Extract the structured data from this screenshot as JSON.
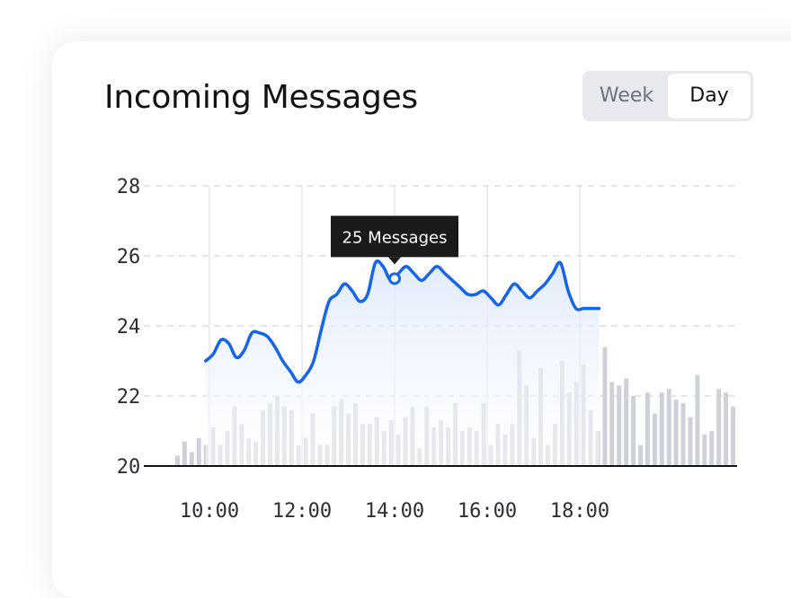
{
  "header": {
    "title": "Incoming Messages"
  },
  "toggle": {
    "options": [
      "Week",
      "Day"
    ],
    "selected": "Day"
  },
  "colors": {
    "line": "#1565e8",
    "fill": "#dbe7fb",
    "bars": "#cfd1da",
    "grid": "#c9ccd3",
    "tooltip_bg": "#1a1a1a"
  },
  "tooltip": {
    "text": "25 Messages",
    "x": "14:00",
    "y": 25.35
  },
  "chart_data": {
    "type": "line",
    "y_ticks": [
      20,
      22,
      24,
      26,
      28
    ],
    "x_ticks": [
      "10:00",
      "12:00",
      "14:00",
      "16:00",
      "18:00"
    ],
    "ylim": [
      20,
      28
    ],
    "x_range": [
      "09:55",
      "19:00"
    ],
    "grid": true,
    "series": [
      {
        "x": [
          "09:55",
          "10:05",
          "10:15",
          "10:25",
          "10:35",
          "10:45",
          "10:55",
          "11:05",
          "11:15",
          "11:25",
          "11:35",
          "11:45",
          "11:55",
          "12:05",
          "12:15",
          "12:25",
          "12:35",
          "12:45",
          "12:55",
          "13:05",
          "13:15",
          "13:25",
          "13:35",
          "13:45",
          "13:55",
          "14:05",
          "14:15",
          "14:25",
          "14:35",
          "14:45",
          "14:55",
          "15:05",
          "15:15",
          "15:25",
          "15:35",
          "15:45",
          "15:55",
          "16:05",
          "16:15",
          "16:25",
          "16:35",
          "16:45",
          "16:55",
          "17:05",
          "17:15",
          "17:25",
          "17:35",
          "17:45",
          "17:55",
          "18:05",
          "18:15",
          "18:25"
        ],
        "values": [
          23.0,
          23.2,
          23.6,
          23.5,
          23.1,
          23.3,
          23.8,
          23.8,
          23.7,
          23.4,
          23.0,
          22.7,
          22.4,
          22.6,
          23.0,
          23.9,
          24.7,
          24.9,
          25.2,
          25.0,
          24.7,
          24.9,
          25.8,
          25.7,
          25.3,
          25.5,
          25.7,
          25.5,
          25.3,
          25.5,
          25.7,
          25.5,
          25.3,
          25.1,
          24.9,
          24.9,
          25.0,
          24.8,
          24.6,
          24.9,
          25.2,
          25.0,
          24.8,
          25.0,
          25.2,
          25.5,
          25.8,
          25.0,
          24.5,
          24.5,
          24.5,
          24.5
        ]
      }
    ],
    "bars": [
      20.3,
      20.7,
      20.4,
      20.8,
      20.6,
      21.1,
      20.6,
      21.0,
      21.7,
      21.2,
      20.8,
      20.7,
      21.6,
      21.8,
      22.0,
      21.7,
      21.6,
      20.6,
      20.8,
      21.5,
      20.6,
      20.6,
      21.7,
      21.9,
      21.5,
      21.8,
      21.2,
      21.2,
      21.4,
      21.0,
      21.3,
      20.9,
      21.4,
      21.7,
      20.5,
      21.7,
      21.1,
      21.3,
      21.1,
      21.8,
      21.0,
      21.1,
      21.0,
      21.8,
      20.6,
      21.2,
      20.9,
      21.2,
      23.3,
      22.3,
      20.8,
      22.8,
      20.6,
      21.2,
      23.0,
      22.1,
      22.4,
      22.9,
      21.6,
      21.0,
      23.4,
      22.4,
      22.3,
      22.5,
      22.0,
      20.6,
      22.1,
      21.5,
      22.1,
      22.2,
      21.9,
      21.8,
      21.4,
      22.6,
      20.9,
      21.0,
      22.2,
      22.1,
      21.7
    ]
  }
}
